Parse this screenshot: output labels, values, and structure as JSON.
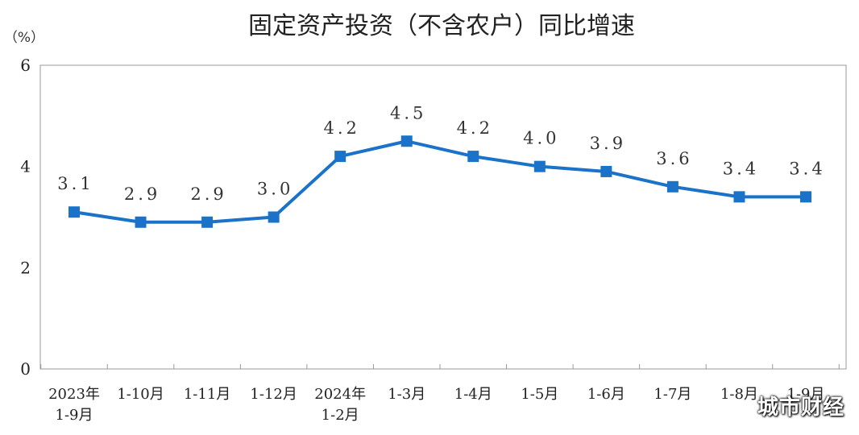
{
  "chart_data": {
    "type": "line",
    "title": "固定资产投资（不含农户）同比增速",
    "unit_label": "（%）",
    "categories": [
      [
        "2023年",
        "1-9月"
      ],
      [
        "1-10月"
      ],
      [
        "1-11月"
      ],
      [
        "1-12月"
      ],
      [
        "2024年",
        "1-2月"
      ],
      [
        "1-3月"
      ],
      [
        "1-4月"
      ],
      [
        "1-5月"
      ],
      [
        "1-6月"
      ],
      [
        "1-7月"
      ],
      [
        "1-8月"
      ],
      [
        "1-9月"
      ]
    ],
    "values": [
      3.1,
      2.9,
      2.9,
      3.0,
      4.2,
      4.5,
      4.2,
      4.0,
      3.9,
      3.6,
      3.4,
      3.4
    ],
    "value_labels": [
      "3.1",
      "2.9",
      "2.9",
      "3.0",
      "4.2",
      "4.5",
      "4.2",
      "4.0",
      "3.9",
      "3.6",
      "3.4",
      "3.4"
    ],
    "ylim": [
      0,
      6
    ],
    "yticks": [
      "0",
      "2",
      "4",
      "6"
    ],
    "grid": false,
    "legend": "none",
    "line_color": "#1a73c8",
    "marker": "square"
  },
  "watermark": "城市财经"
}
